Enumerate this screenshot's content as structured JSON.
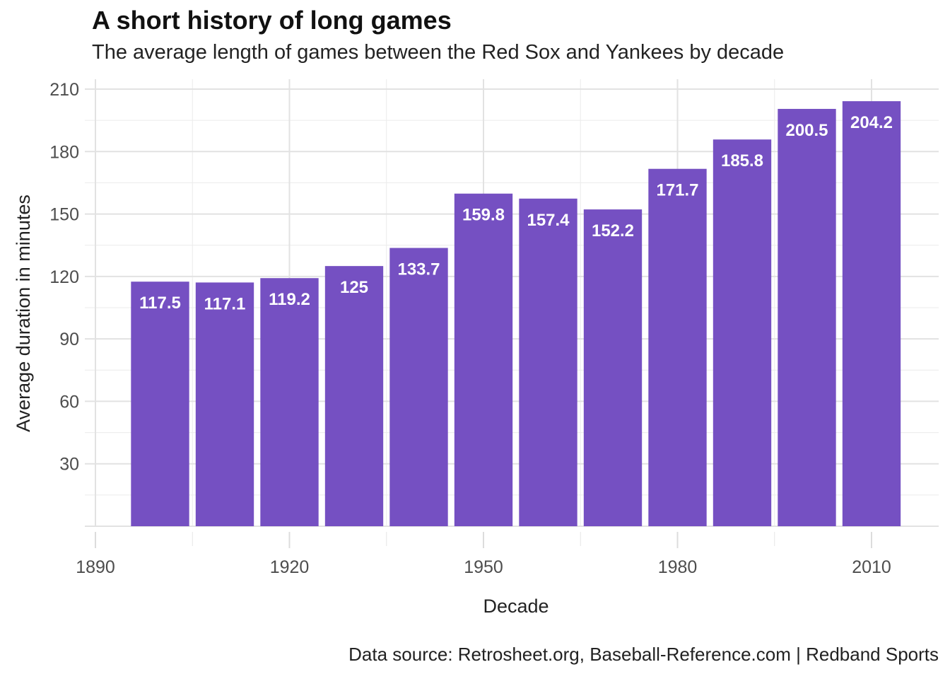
{
  "chart_data": {
    "type": "bar",
    "title": "A short history of long games",
    "subtitle": "The average length of games between the Red Sox and Yankees by decade",
    "caption": "Data source: Retrosheet.org, Baseball-Reference.com  |  Redband Sports",
    "xlabel": "Decade",
    "ylabel": "Average duration in minutes",
    "x": [
      1900,
      1910,
      1920,
      1930,
      1940,
      1950,
      1960,
      1970,
      1980,
      1990,
      2000,
      2010
    ],
    "values": [
      117.5,
      117.1,
      119.2,
      125,
      133.7,
      159.8,
      157.4,
      152.2,
      171.7,
      185.8,
      200.5,
      204.2
    ],
    "labels": [
      "117.5",
      "117.1",
      "119.2",
      "125",
      "133.7",
      "159.8",
      "157.4",
      "152.2",
      "171.7",
      "185.8",
      "200.5",
      "204.2"
    ],
    "xticks": [
      1890,
      1920,
      1950,
      1980,
      2010
    ],
    "yticks": [
      30,
      60,
      90,
      120,
      150,
      180,
      210
    ],
    "xlim": [
      1890,
      2020
    ],
    "ylim": [
      0,
      210
    ],
    "bar_color": "#7550c2",
    "grid": true
  }
}
